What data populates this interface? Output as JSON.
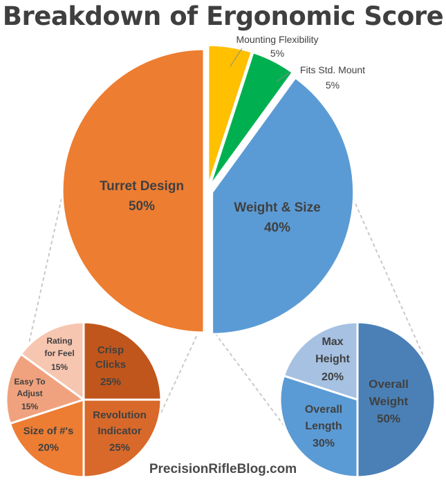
{
  "title": "Breakdown of Ergonomic Score",
  "watermark": "PrecisionRifleBlog.com",
  "colors": {
    "turret": "#ed7d31",
    "weight": "#5b9bd5",
    "mounting": "#ffc000",
    "fits": "#00b050",
    "crisp": "#c0561c",
    "revolution": "#d8692a",
    "size_nums": "#ec7d33",
    "easy": "#f0a27e",
    "rating": "#f7c6b0",
    "overall_weight": "#4a80b6",
    "overall_length": "#5b9bd5",
    "max_height": "#a6c1e2",
    "connector": "#c9c9c9"
  },
  "chart_data": [
    {
      "type": "pie",
      "title": "Breakdown of Ergonomic Score",
      "slices": [
        {
          "key": "weight",
          "label": "Weight & Size",
          "value": 40,
          "display": "40%"
        },
        {
          "key": "turret",
          "label": "Turret Design",
          "value": 50,
          "display": "50%"
        },
        {
          "key": "mounting",
          "label": "Mounting Flexibility",
          "value": 5,
          "display": "5%"
        },
        {
          "key": "fits",
          "label": "Fits Std. Mount",
          "value": 5,
          "display": "5%"
        }
      ]
    },
    {
      "type": "pie",
      "parent": "Turret Design",
      "slices": [
        {
          "key": "crisp",
          "label": "Crisp Clicks",
          "value": 25,
          "display": "25%"
        },
        {
          "key": "revolution",
          "label": "Revolution Indicator",
          "value": 25,
          "display": "25%"
        },
        {
          "key": "size_nums",
          "label": "Size of #'s",
          "value": 20,
          "display": "20%"
        },
        {
          "key": "easy",
          "label": "Easy To Adjust",
          "value": 15,
          "display": "15%"
        },
        {
          "key": "rating",
          "label": "Rating for Feel",
          "value": 15,
          "display": "15%"
        }
      ]
    },
    {
      "type": "pie",
      "parent": "Weight & Size",
      "slices": [
        {
          "key": "overall_weight",
          "label": "Overall Weight",
          "value": 50,
          "display": "50%"
        },
        {
          "key": "overall_length",
          "label": "Overall Length",
          "value": 30,
          "display": "30%"
        },
        {
          "key": "max_height",
          "label": "Max Height",
          "value": 20,
          "display": "20%"
        }
      ]
    }
  ]
}
